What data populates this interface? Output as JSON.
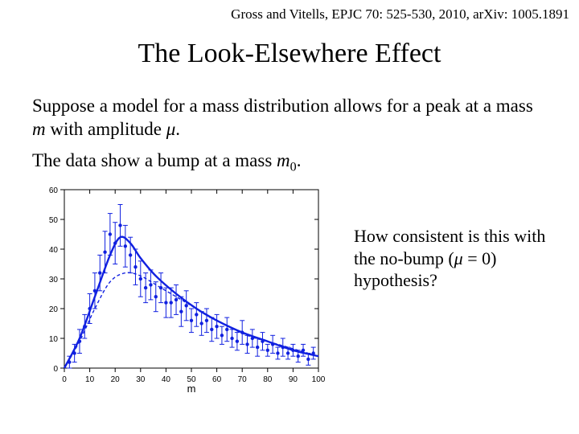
{
  "citation": "Gross and Vitells, EPJC 70: 525-530, 2010, arXiv: 1005.1891",
  "title": "The Look-Elsewhere Effect",
  "para1_a": "Suppose a model for a mass distribution allows for a peak at a mass ",
  "para1_m": "m",
  "para1_b": " with amplitude ",
  "para1_mu": "μ",
  "para1_c": ".",
  "para2_a": "The data show a bump at a mass ",
  "para2_m": "m",
  "para2_sub": "0",
  "para2_b": ".",
  "question_a": "How consistent is this with the no-bump (",
  "question_mu": "μ",
  "question_eq": " = 0) hypothesis?",
  "chart": {
    "type": "scatter_with_curves",
    "xlabel": "m",
    "xlim": [
      0,
      100
    ],
    "xticks": [
      0,
      10,
      20,
      30,
      40,
      50,
      60,
      70,
      80,
      90,
      100
    ],
    "ylim": [
      0,
      60
    ],
    "yticks": [
      0,
      10,
      20,
      30,
      40,
      50,
      60
    ],
    "background_color": "#ffffff",
    "axis_color": "#000000",
    "tick_fontsize": 10,
    "label_fontsize": 13,
    "data_points": {
      "x": [
        2,
        4,
        6,
        8,
        10,
        12,
        14,
        16,
        18,
        20,
        22,
        24,
        26,
        28,
        30,
        32,
        34,
        36,
        38,
        40,
        42,
        44,
        46,
        48,
        50,
        52,
        54,
        56,
        58,
        60,
        62,
        64,
        66,
        68,
        70,
        72,
        74,
        76,
        78,
        80,
        82,
        84,
        86,
        88,
        90,
        92,
        94,
        96,
        98
      ],
      "y": [
        2,
        5,
        9,
        14,
        20,
        26,
        32,
        39,
        45,
        42,
        48,
        41,
        38,
        34,
        30,
        27,
        28,
        24,
        27,
        22,
        22,
        23,
        19,
        21,
        16,
        18,
        15,
        16,
        13,
        14,
        11,
        13,
        10,
        9,
        12,
        8,
        10,
        7,
        9,
        6,
        8,
        5,
        7,
        5,
        6,
        4,
        6,
        3,
        5
      ],
      "yerr": [
        2,
        3,
        4,
        4,
        5,
        6,
        6,
        7,
        7,
        7,
        7,
        7,
        6,
        6,
        6,
        5,
        5,
        5,
        5,
        5,
        5,
        5,
        5,
        5,
        4,
        4,
        4,
        4,
        4,
        4,
        3,
        4,
        3,
        3,
        4,
        3,
        3,
        3,
        3,
        2,
        3,
        2,
        3,
        2,
        2,
        2,
        2,
        2,
        2
      ],
      "marker_color": "#1020e0",
      "marker_size": 2.2,
      "errorbar_color": "#1020e0",
      "errorbar_width": 1,
      "cap_width": 3
    },
    "curve_fit": {
      "x": [
        0,
        6,
        12,
        18,
        22,
        26,
        30,
        36,
        44,
        52,
        60,
        70,
        80,
        90,
        100
      ],
      "y": [
        0,
        10,
        24,
        38,
        44,
        42,
        37,
        31,
        25,
        20,
        16,
        12,
        9,
        6,
        4
      ],
      "stroke": "#1020e0",
      "stroke_width": 2.4,
      "dash": "none"
    },
    "curve_null": {
      "x": [
        0,
        6,
        12,
        18,
        24,
        30,
        38,
        48,
        60,
        72,
        84,
        100
      ],
      "y": [
        0,
        9,
        20,
        29,
        32,
        31,
        27,
        22,
        16,
        11,
        8,
        4
      ],
      "stroke": "#1020e0",
      "stroke_width": 1.4,
      "dash": "4 3"
    }
  }
}
